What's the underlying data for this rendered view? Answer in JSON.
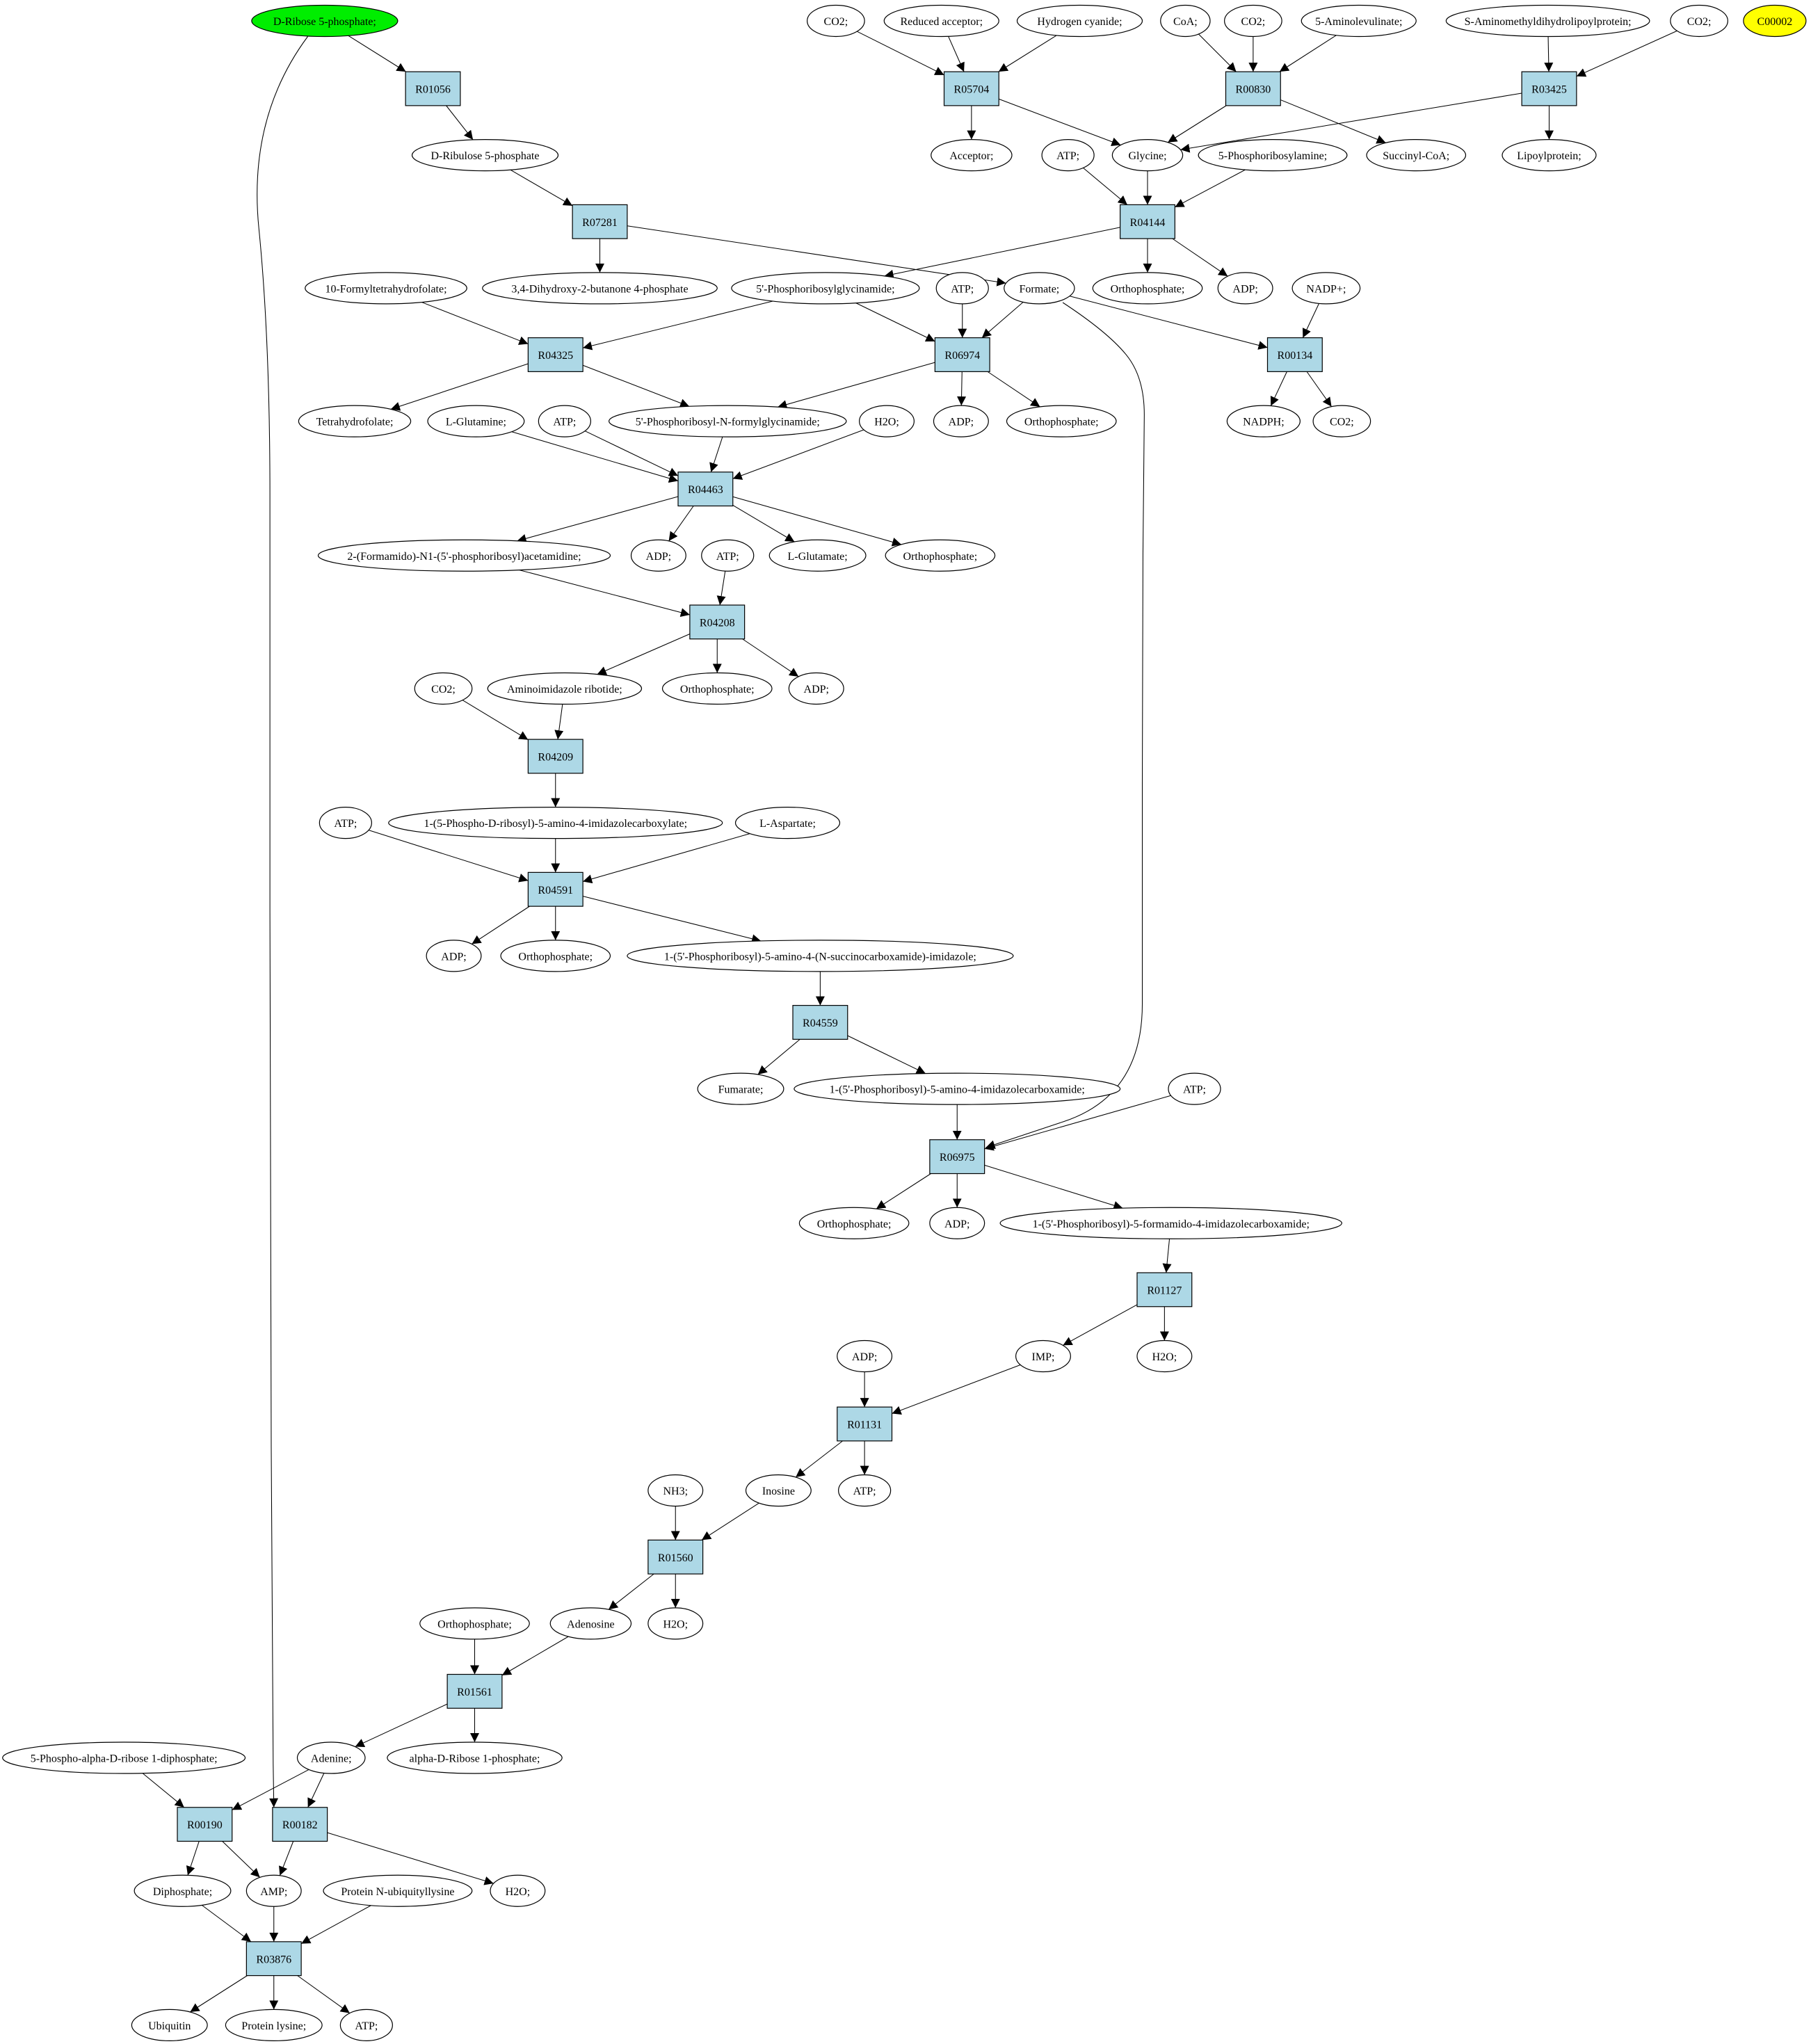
{
  "colors": {
    "start_fill": "#00ee00",
    "target_fill": "#ffff00",
    "reaction_fill": "#add8e6",
    "compound_fill": "#ffffff",
    "stroke": "#000000"
  },
  "compounds": {
    "c_ribose5p": "D-Ribose 5-phosphate;",
    "c_c00002": "C00002",
    "c_co2_a": "CO2;",
    "c_redacc": "Reduced acceptor;",
    "c_hcn": "Hydrogen cyanide;",
    "c_coa": "CoA;",
    "c_co2_b": "CO2;",
    "c_ala": "5-Aminolevulinate;",
    "c_samdl": "S-Aminomethyldihydrolipoylprotein;",
    "c_co2_c": "CO2;",
    "c_ribulose5p": "D-Ribulose 5-phosphate",
    "c_acceptor": "Acceptor;",
    "c_atp_1": "ATP;",
    "c_glycine": "Glycine;",
    "c_prpa": "5-Phosphoribosylamine;",
    "c_succoa": "Succinyl-CoA;",
    "c_lipoyl": "Lipoylprotein;",
    "c_dhbp": "3,4-Dihydroxy-2-butanone 4-phosphate",
    "c_orthophos_1": "Orthophosphate;",
    "c_adp_1": "ADP;",
    "c_fthf": "10-Formyltetrahydrofolate;",
    "c_gar": "5'-Phosphoribosylglycinamide;",
    "c_atp_2": "ATP;",
    "c_formate": "Formate;",
    "c_nadp": "NADP+;",
    "c_thf": "Tetrahydrofolate;",
    "c_gln": "L-Glutamine;",
    "c_atp_3": "ATP;",
    "c_fgar": "5'-Phosphoribosyl-N-formylglycinamide;",
    "c_h2o_1": "H2O;",
    "c_adp_2": "ADP;",
    "c_orthophos_2": "Orthophosphate;",
    "c_nadph": "NADPH;",
    "c_co2_d": "CO2;",
    "c_fgam": "2-(Formamido)-N1-(5'-phosphoribosyl)acetamidine;",
    "c_adp_3": "ADP;",
    "c_atp_4": "ATP;",
    "c_glu": "L-Glutamate;",
    "c_orthophos_3": "Orthophosphate;",
    "c_co2_e": "CO2;",
    "c_air": "Aminoimidazole ribotide;",
    "c_orthophos_4": "Orthophosphate;",
    "c_adp_4": "ADP;",
    "c_cair": "1-(5-Phospho-D-ribosyl)-5-amino-4-imidazolecarboxylate;",
    "c_atp_5": "ATP;",
    "c_asp": "L-Aspartate;",
    "c_adp_5": "ADP;",
    "c_orthophos_5": "Orthophosphate;",
    "c_saicar": "1-(5'-Phosphoribosyl)-5-amino-4-(N-succinocarboxamide)-imidazole;",
    "c_fumarate": "Fumarate;",
    "c_aicar": "1-(5'-Phosphoribosyl)-5-amino-4-imidazolecarboxamide;",
    "c_atp_6": "ATP;",
    "c_orthophos_6": "Orthophosphate;",
    "c_adp_6": "ADP;",
    "c_faicar": "1-(5'-Phosphoribosyl)-5-formamido-4-imidazolecarboxamide;",
    "c_adp_7": "ADP;",
    "c_imp": "IMP;",
    "c_h2o_2": "H2O;",
    "c_nh3": "NH3;",
    "c_inosine": "Inosine",
    "c_atp_7": "ATP;",
    "c_orthophos_7": "Orthophosphate;",
    "c_adenosine": "Adenosine",
    "c_h2o_3": "H2O;",
    "c_prpp": "5-Phospho-alpha-D-ribose 1-diphosphate;",
    "c_adenine": "Adenine;",
    "c_r1p": "alpha-D-Ribose 1-phosphate;",
    "c_diphosphate": "Diphosphate;",
    "c_amp": "AMP;",
    "c_pnul": "Protein N-ubiquityllysine",
    "c_h2o_4": "H2O;",
    "c_ubiquitin": "Ubiquitin",
    "c_proteinlys": "Protein lysine;",
    "c_atp_8": "ATP;"
  },
  "reactions": {
    "r_R01056": "R01056",
    "r_R05704": "R05704",
    "r_R00830": "R00830",
    "r_R03425": "R03425",
    "r_R07281": "R07281",
    "r_R04144": "R04144",
    "r_R04325": "R04325",
    "r_R06974": "R06974",
    "r_R00134": "R00134",
    "r_R04463": "R04463",
    "r_R04208": "R04208",
    "r_R04209": "R04209",
    "r_R04591": "R04591",
    "r_R04559": "R04559",
    "r_R06975": "R06975",
    "r_R01127": "R01127",
    "r_R01131": "R01131",
    "r_R01560": "R01560",
    "r_R01561": "R01561",
    "r_R00190": "R00190",
    "r_R00182": "R00182",
    "r_R03876": "R03876"
  },
  "edges": [
    [
      "c_ribose5p",
      "r_R01056"
    ],
    [
      "r_R01056",
      "c_ribulose5p"
    ],
    [
      "c_ribulose5p",
      "r_R07281"
    ],
    [
      "r_R07281",
      "c_dhbp"
    ],
    [
      "r_R07281",
      "c_formate"
    ],
    [
      "c_co2_a",
      "r_R05704"
    ],
    [
      "c_redacc",
      "r_R05704"
    ],
    [
      "c_hcn",
      "r_R05704"
    ],
    [
      "r_R05704",
      "c_acceptor"
    ],
    [
      "r_R05704",
      "c_glycine"
    ],
    [
      "c_coa",
      "r_R00830"
    ],
    [
      "c_co2_b",
      "r_R00830"
    ],
    [
      "c_ala",
      "r_R00830"
    ],
    [
      "r_R00830",
      "c_glycine"
    ],
    [
      "r_R00830",
      "c_succoa"
    ],
    [
      "c_samdl",
      "r_R03425"
    ],
    [
      "c_co2_c",
      "r_R03425"
    ],
    [
      "r_R03425",
      "c_glycine"
    ],
    [
      "r_R03425",
      "c_lipoyl"
    ],
    [
      "c_atp_1",
      "r_R04144"
    ],
    [
      "c_glycine",
      "r_R04144"
    ],
    [
      "c_prpa",
      "r_R04144"
    ],
    [
      "r_R04144",
      "c_gar"
    ],
    [
      "r_R04144",
      "c_orthophos_1"
    ],
    [
      "r_R04144",
      "c_adp_1"
    ],
    [
      "c_fthf",
      "r_R04325"
    ],
    [
      "c_gar",
      "r_R04325"
    ],
    [
      "r_R04325",
      "c_thf"
    ],
    [
      "r_R04325",
      "c_fgar"
    ],
    [
      "c_gar",
      "r_R06974"
    ],
    [
      "c_atp_2",
      "r_R06974"
    ],
    [
      "c_formate",
      "r_R06974"
    ],
    [
      "r_R06974",
      "c_fgar"
    ],
    [
      "r_R06974",
      "c_adp_2"
    ],
    [
      "r_R06974",
      "c_orthophos_2"
    ],
    [
      "c_formate",
      "r_R00134"
    ],
    [
      "c_nadp",
      "r_R00134"
    ],
    [
      "r_R00134",
      "c_nadph"
    ],
    [
      "r_R00134",
      "c_co2_d"
    ],
    [
      "c_gln",
      "r_R04463"
    ],
    [
      "c_atp_3",
      "r_R04463"
    ],
    [
      "c_fgar",
      "r_R04463"
    ],
    [
      "c_h2o_1",
      "r_R04463"
    ],
    [
      "r_R04463",
      "c_fgam"
    ],
    [
      "r_R04463",
      "c_adp_3"
    ],
    [
      "r_R04463",
      "c_glu"
    ],
    [
      "r_R04463",
      "c_orthophos_3"
    ],
    [
      "c_fgam",
      "r_R04208"
    ],
    [
      "c_atp_4",
      "r_R04208"
    ],
    [
      "r_R04208",
      "c_air"
    ],
    [
      "r_R04208",
      "c_orthophos_4"
    ],
    [
      "r_R04208",
      "c_adp_4"
    ],
    [
      "c_co2_e",
      "r_R04209"
    ],
    [
      "c_air",
      "r_R04209"
    ],
    [
      "r_R04209",
      "c_cair"
    ],
    [
      "c_atp_5",
      "r_R04591"
    ],
    [
      "c_cair",
      "r_R04591"
    ],
    [
      "c_asp",
      "r_R04591"
    ],
    [
      "r_R04591",
      "c_adp_5"
    ],
    [
      "r_R04591",
      "c_orthophos_5"
    ],
    [
      "r_R04591",
      "c_saicar"
    ],
    [
      "c_saicar",
      "r_R04559"
    ],
    [
      "r_R04559",
      "c_fumarate"
    ],
    [
      "r_R04559",
      "c_aicar"
    ],
    [
      "c_aicar",
      "r_R06975"
    ],
    [
      "c_atp_6",
      "r_R06975"
    ],
    [
      "c_formate",
      "r_R06975"
    ],
    [
      "r_R06975",
      "c_orthophos_6"
    ],
    [
      "r_R06975",
      "c_adp_6"
    ],
    [
      "r_R06975",
      "c_faicar"
    ],
    [
      "c_faicar",
      "r_R01127"
    ],
    [
      "r_R01127",
      "c_imp"
    ],
    [
      "r_R01127",
      "c_h2o_2"
    ],
    [
      "c_adp_7",
      "r_R01131"
    ],
    [
      "c_imp",
      "r_R01131"
    ],
    [
      "r_R01131",
      "c_inosine"
    ],
    [
      "r_R01131",
      "c_atp_7"
    ],
    [
      "c_nh3",
      "r_R01560"
    ],
    [
      "c_inosine",
      "r_R01560"
    ],
    [
      "r_R01560",
      "c_adenosine"
    ],
    [
      "r_R01560",
      "c_h2o_3"
    ],
    [
      "c_orthophos_7",
      "r_R01561"
    ],
    [
      "c_adenosine",
      "r_R01561"
    ],
    [
      "r_R01561",
      "c_adenine"
    ],
    [
      "r_R01561",
      "c_r1p"
    ],
    [
      "c_prpp",
      "r_R00190"
    ],
    [
      "c_adenine",
      "r_R00190"
    ],
    [
      "r_R00190",
      "c_diphosphate"
    ],
    [
      "r_R00190",
      "c_amp"
    ],
    [
      "c_ribose5p",
      "r_R00182"
    ],
    [
      "c_adenine",
      "r_R00182"
    ],
    [
      "r_R00182",
      "c_amp"
    ],
    [
      "r_R00182",
      "c_h2o_4"
    ],
    [
      "c_diphosphate",
      "r_R03876"
    ],
    [
      "c_amp",
      "r_R03876"
    ],
    [
      "c_pnul",
      "r_R03876"
    ],
    [
      "r_R03876",
      "c_ubiquitin"
    ],
    [
      "r_R03876",
      "c_proteinlys"
    ],
    [
      "r_R03876",
      "c_atp_8"
    ]
  ]
}
